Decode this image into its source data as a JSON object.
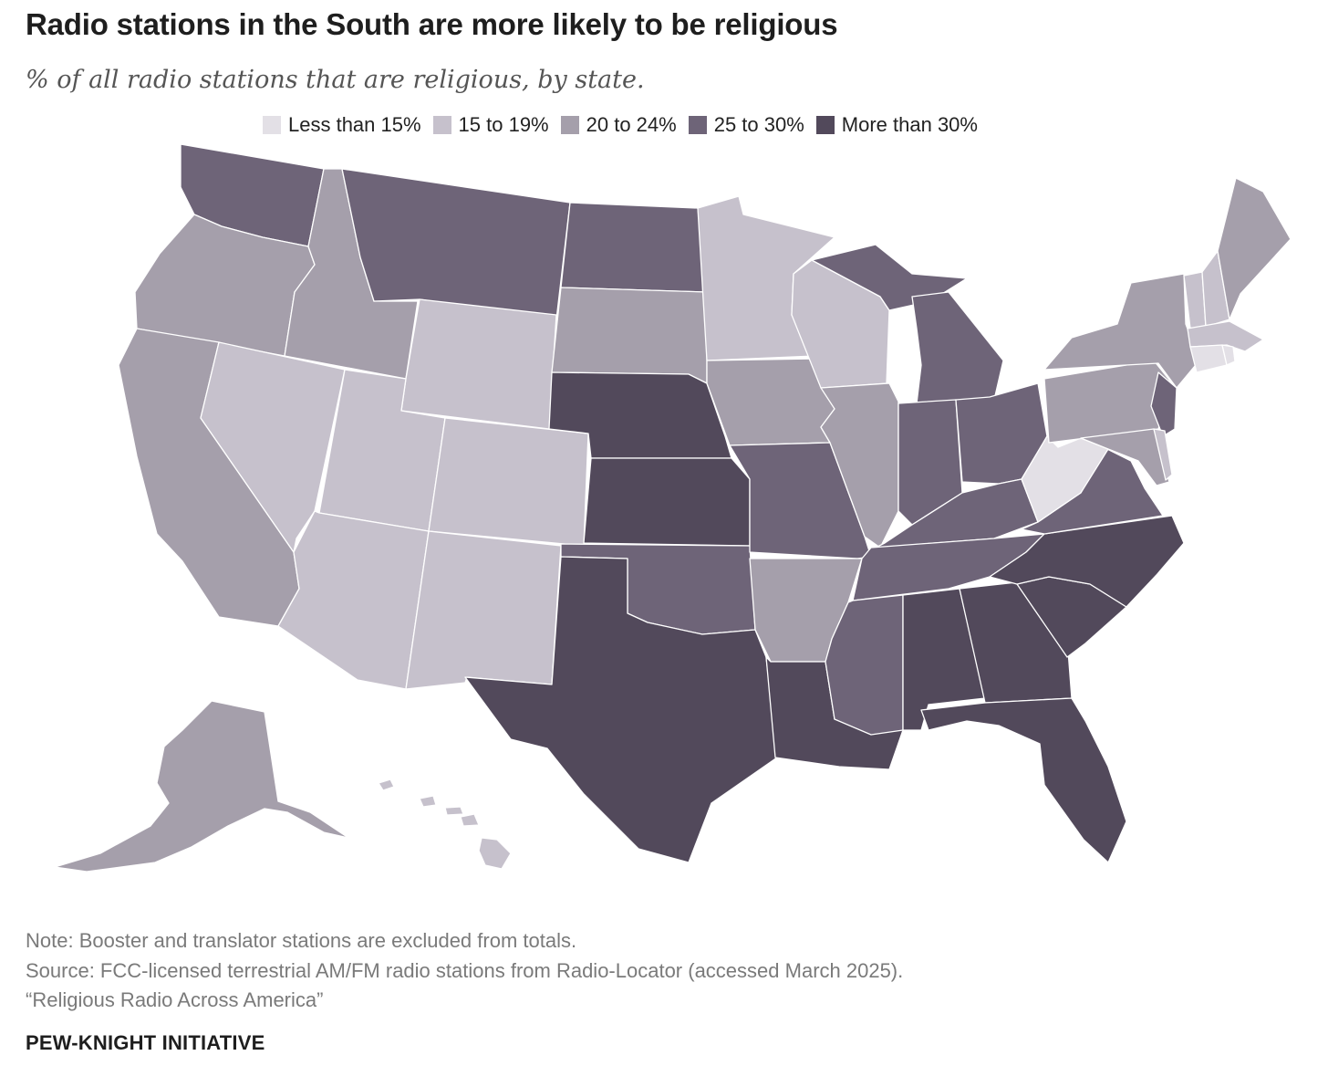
{
  "title": "Radio stations in the South are more likely to be religious",
  "subtitle": "% of all radio stations that are religious, by state.",
  "legend": [
    {
      "label": "Less than 15%",
      "color": "#e3e0e6"
    },
    {
      "label": "15 to 19%",
      "color": "#c6c1cc"
    },
    {
      "label": "20 to 24%",
      "color": "#a59fab"
    },
    {
      "label": "25 to 30%",
      "color": "#6e6478"
    },
    {
      "label": "More than 30%",
      "color": "#52495b"
    }
  ],
  "notes": {
    "note": "Note: Booster and translator stations are excluded from totals.",
    "source": "Source: FCC-licensed terrestrial AM/FM radio stations from Radio-Locator (accessed March 2025).",
    "report": "“Religious Radio Across America”"
  },
  "brand": "PEW-KNIGHT INITIATIVE",
  "chart_data": {
    "type": "choropleth",
    "categories": [
      "Less than 15%",
      "15 to 19%",
      "20 to 24%",
      "25 to 30%",
      "More than 30%"
    ],
    "states": {
      "WA": 3,
      "OR": 2,
      "CA": 2,
      "NV": 1,
      "ID": 2,
      "MT": 3,
      "WY": 1,
      "UT": 1,
      "AZ": 1,
      "CO": 1,
      "NM": 1,
      "ND": 3,
      "SD": 2,
      "NE": 4,
      "KS": 4,
      "OK": 3,
      "TX": 4,
      "MN": 1,
      "IA": 2,
      "MO": 3,
      "AR": 2,
      "LA": 4,
      "WI": 1,
      "IL": 2,
      "MI": 3,
      "IN": 3,
      "OH": 3,
      "KY": 3,
      "TN": 3,
      "MS": 3,
      "AL": 4,
      "GA": 4,
      "FL": 4,
      "SC": 4,
      "NC": 4,
      "VA": 3,
      "WV": 0,
      "PA": 2,
      "NY": 2,
      "VT": 1,
      "NH": 1,
      "ME": 2,
      "MA": 1,
      "CT": 0,
      "RI": 0,
      "NJ": 3,
      "DE": 1,
      "MD": 2,
      "AK": 2,
      "HI": 1
    }
  }
}
